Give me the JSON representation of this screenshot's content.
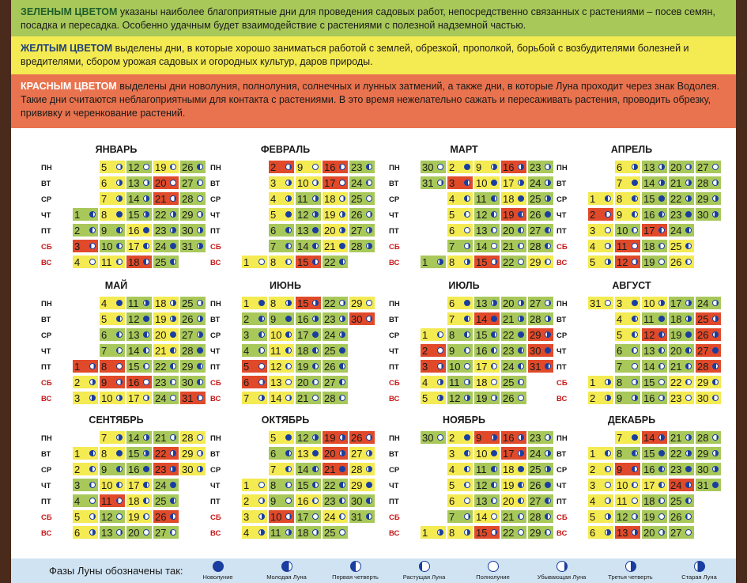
{
  "intro": {
    "green_label": "ЗЕЛЕНЫМ ЦВЕТОМ",
    "green_text": "указаны наиболее благоприятные дни для проведения садовых работ, непосредственно связанных с растениями – посев семян, посадка и пересадка. Особенно удачным будет взаимодействие с растениями с полезной надземной частью.",
    "yellow_label": "ЖЕЛТЫМ ЦВЕТОМ",
    "yellow_text": "выделены дни, в которые хорошо заниматься работой с землей, обрезкой, прополкой, борьбой с возбудителями болезней и вредителями, сбором урожая садовых и огородных культур, даров природы.",
    "red_label": "КРАСНЫМ ЦВЕТОМ",
    "red_text": "выделены дни новолуния, полнолуния, солнечных и лунных затмений, а также дни, в которые Луна проходит через знак Водолея. Такие дни считаются неблагоприятными для контакта с растениями. В это время нежелательно сажать и пересаживать растения, проводить обрезку, прививку и черенкование растений."
  },
  "weekdays": [
    "ПН",
    "ВТ",
    "СР",
    "ЧТ",
    "ПТ",
    "СБ",
    "ВС"
  ],
  "colors": {
    "green": "#a8c85a",
    "yellow": "#f4ea52",
    "red": "#e04a2a",
    "moon": "#1a3ea0"
  },
  "months": [
    {
      "name": "ЯНВАРЬ",
      "days": [
        [
          "",
          "5y",
          "12g",
          "19y",
          "26g"
        ],
        [
          "",
          "6y",
          "13g",
          "20r",
          "27g"
        ],
        [
          "",
          "7y",
          "14g",
          "21r",
          "28g"
        ],
        [
          "1g",
          "8y",
          "15g",
          "22g",
          "29g"
        ],
        [
          "2g",
          "9g",
          "16y",
          "23g",
          "30g"
        ],
        [
          "3r",
          "10g",
          "17y",
          "24g",
          "31g"
        ],
        [
          "4y",
          "11y",
          "18r",
          "25g",
          ""
        ]
      ]
    },
    {
      "name": "ФЕВРАЛЬ",
      "days": [
        [
          "",
          "2r",
          "9y",
          "16r",
          "23g"
        ],
        [
          "",
          "3y",
          "10y",
          "17r",
          "24g"
        ],
        [
          "",
          "4y",
          "11g",
          "18y",
          "25g"
        ],
        [
          "",
          "5y",
          "12g",
          "19y",
          "26g"
        ],
        [
          "",
          "6g",
          "13g",
          "20y",
          "27g"
        ],
        [
          "",
          "7g",
          "14g",
          "21y",
          "28g"
        ],
        [
          "1y",
          "8y",
          "15r",
          "22g",
          ""
        ]
      ]
    },
    {
      "name": "МАРТ",
      "days": [
        [
          "30g",
          "2y",
          "9y",
          "16r",
          "23g"
        ],
        [
          "31g",
          "3r",
          "10y",
          "17y",
          "24g"
        ],
        [
          "",
          "4y",
          "11g",
          "18y",
          "25g"
        ],
        [
          "",
          "5y",
          "12g",
          "19r",
          "26g"
        ],
        [
          "",
          "6y",
          "13g",
          "20g",
          "27g"
        ],
        [
          "",
          "7g",
          "14g",
          "21g",
          "28g"
        ],
        [
          "1g",
          "8y",
          "15r",
          "22g",
          "29y"
        ]
      ]
    },
    {
      "name": "АПРЕЛЬ",
      "days": [
        [
          "",
          "6y",
          "13g",
          "20g",
          "27g"
        ],
        [
          "",
          "7y",
          "14g",
          "21g",
          "28g"
        ],
        [
          "1y",
          "8y",
          "15g",
          "22g",
          "29g"
        ],
        [
          "2r",
          "9y",
          "16g",
          "23g",
          "30g"
        ],
        [
          "3y",
          "10g",
          "17r",
          "24g",
          ""
        ],
        [
          "4y",
          "11r",
          "18g",
          "25y",
          ""
        ],
        [
          "5y",
          "12r",
          "19g",
          "26y",
          ""
        ]
      ]
    },
    {
      "name": "МАЙ",
      "days": [
        [
          "",
          "4y",
          "11g",
          "18y",
          "25g"
        ],
        [
          "",
          "5y",
          "12g",
          "19y",
          "26g"
        ],
        [
          "",
          "6g",
          "13g",
          "20y",
          "27g"
        ],
        [
          "",
          "7g",
          "14g",
          "21y",
          "28g"
        ],
        [
          "1r",
          "8r",
          "15g",
          "22g",
          "29g"
        ],
        [
          "2y",
          "9r",
          "16r",
          "23g",
          "30g"
        ],
        [
          "3y",
          "10y",
          "17y",
          "24g",
          "31r"
        ]
      ]
    },
    {
      "name": "ИЮНЬ",
      "days": [
        [
          "1y",
          "8y",
          "15r",
          "22g",
          "29y"
        ],
        [
          "2g",
          "9g",
          "16g",
          "23g",
          "30r"
        ],
        [
          "3g",
          "10y",
          "17g",
          "24g",
          ""
        ],
        [
          "4g",
          "11y",
          "18g",
          "25g",
          ""
        ],
        [
          "5r",
          "12y",
          "19g",
          "26g",
          ""
        ],
        [
          "6r",
          "13y",
          "20g",
          "27g",
          ""
        ],
        [
          "7y",
          "14y",
          "21g",
          "28g",
          ""
        ]
      ]
    },
    {
      "name": "ИЮЛЬ",
      "days": [
        [
          "",
          "6y",
          "13g",
          "20g",
          "27g"
        ],
        [
          "",
          "7y",
          "14r",
          "21g",
          "28g"
        ],
        [
          "1y",
          "8g",
          "15g",
          "22g",
          "29r"
        ],
        [
          "2r",
          "9g",
          "16g",
          "23g",
          "30r"
        ],
        [
          "3r",
          "10g",
          "17y",
          "24g",
          "31r"
        ],
        [
          "4y",
          "11g",
          "18y",
          "25g",
          ""
        ],
        [
          "5y",
          "12g",
          "19g",
          "26g",
          ""
        ]
      ]
    },
    {
      "name": "АВГУСТ",
      "days": [
        [
          "31y",
          "3y",
          "10y",
          "17g",
          "24g"
        ],
        [
          "",
          "4y",
          "11g",
          "18g",
          "25r"
        ],
        [
          "",
          "5y",
          "12r",
          "19g",
          "26r"
        ],
        [
          "",
          "6g",
          "13g",
          "20g",
          "27r"
        ],
        [
          "",
          "7g",
          "14g",
          "21g",
          "28r"
        ],
        [
          "1y",
          "8g",
          "15g",
          "22y",
          "29y"
        ],
        [
          "2y",
          "9g",
          "16g",
          "23y",
          "30y"
        ]
      ]
    },
    {
      "name": "СЕНТЯБРЬ",
      "days": [
        [
          "",
          "7y",
          "14g",
          "21g",
          "28y"
        ],
        [
          "1y",
          "8y",
          "15g",
          "22r",
          "29y"
        ],
        [
          "2y",
          "9g",
          "16g",
          "23r",
          "30y"
        ],
        [
          "3g",
          "10y",
          "17y",
          "24g",
          ""
        ],
        [
          "4g",
          "11r",
          "18y",
          "25g",
          ""
        ],
        [
          "5y",
          "12g",
          "19y",
          "26r",
          ""
        ],
        [
          "6y",
          "13g",
          "20g",
          "27g",
          ""
        ]
      ]
    },
    {
      "name": "ОКТЯБРЬ",
      "days": [
        [
          "",
          "5y",
          "12g",
          "19r",
          "26r"
        ],
        [
          "",
          "6g",
          "13y",
          "20r",
          "27y"
        ],
        [
          "",
          "7y",
          "14g",
          "21r",
          "28y"
        ],
        [
          "1y",
          "8g",
          "15g",
          "22g",
          "29y"
        ],
        [
          "2y",
          "9g",
          "16y",
          "23g",
          "30g"
        ],
        [
          "3y",
          "10r",
          "17g",
          "24y",
          "31g"
        ],
        [
          "4y",
          "11g",
          "18g",
          "25g",
          ""
        ]
      ]
    },
    {
      "name": "НОЯБРЬ",
      "days": [
        [
          "30g",
          "2y",
          "9r",
          "16r",
          "23g"
        ],
        [
          "",
          "3y",
          "10y",
          "17r",
          "24g"
        ],
        [
          "",
          "4y",
          "11g",
          "18y",
          "25g"
        ],
        [
          "",
          "5y",
          "12g",
          "19y",
          "26g"
        ],
        [
          "",
          "6y",
          "13g",
          "20y",
          "27g"
        ],
        [
          "",
          "7g",
          "14y",
          "21g",
          "28g"
        ],
        [
          "1y",
          "8y",
          "15r",
          "22g",
          "29g"
        ]
      ]
    },
    {
      "name": "ДЕКАБРЬ",
      "days": [
        [
          "",
          "7y",
          "14r",
          "21g",
          "28g"
        ],
        [
          "1y",
          "8g",
          "15g",
          "22g",
          "29g"
        ],
        [
          "2y",
          "9r",
          "16g",
          "23g",
          "30g"
        ],
        [
          "3y",
          "10y",
          "17y",
          "24r",
          "31g"
        ],
        [
          "4y",
          "11y",
          "18g",
          "25g",
          ""
        ],
        [
          "5y",
          "12g",
          "19g",
          "26g",
          ""
        ],
        [
          "6y",
          "13r",
          "20g",
          "27g",
          ""
        ]
      ]
    }
  ],
  "legend": {
    "label": "Фазы Луны обозначены так:",
    "items": [
      {
        "name": "Новолуние",
        "icon": "new-moon-icon"
      },
      {
        "name": "Молодая Луна",
        "icon": "young-moon-icon"
      },
      {
        "name": "Первая четверть",
        "icon": "first-quarter-icon"
      },
      {
        "name": "Растущая Луна",
        "icon": "waxing-moon-icon"
      },
      {
        "name": "Полнолуние",
        "icon": "full-moon-icon"
      },
      {
        "name": "Убывающая Луна",
        "icon": "waning-moon-icon"
      },
      {
        "name": "Третья четверть",
        "icon": "third-quarter-icon"
      },
      {
        "name": "Старая Луна",
        "icon": "old-moon-icon"
      }
    ]
  }
}
